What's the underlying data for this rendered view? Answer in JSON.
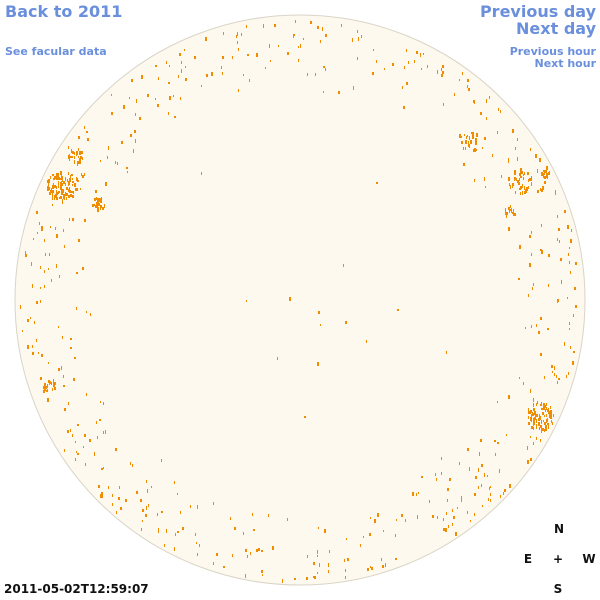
{
  "nav": {
    "back_label": "Back to 2011",
    "facular_label": "See facular data",
    "prev_day_label": "Previous day",
    "next_day_label": "Next day",
    "prev_hour_label": "Previous hour",
    "next_hour_label": "Next hour"
  },
  "compass": {
    "north": "N",
    "south": "S",
    "east": "E",
    "west": "W",
    "center": "+"
  },
  "timestamp": "2011-05-02T12:59:07",
  "colors": {
    "disk_fill": "#fdf9ee",
    "disk_edge": "#d9d4c6",
    "facula": "#f08c00",
    "link": "#6a8fdc"
  }
}
